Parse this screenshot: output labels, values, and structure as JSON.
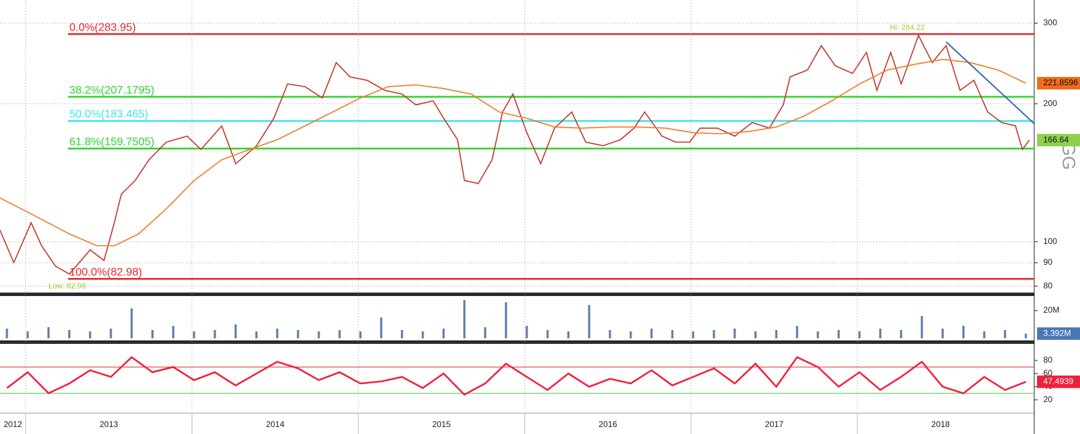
{
  "chart_data": [
    {
      "type": "line",
      "log_scale": true,
      "grid": true,
      "ticker": "GG",
      "xlim": [
        2012.846,
        2019.063
      ],
      "ylim": [
        78,
        337
      ],
      "yticks": [
        80,
        90,
        100,
        200,
        300
      ],
      "series": [
        {
          "color": "#c0392b",
          "tag_color": "#8fd14f",
          "x": [
            2012.846,
            2012.929,
            2013.033,
            2013.096,
            2013.179,
            2013.263,
            2013.388,
            2013.471,
            2013.533,
            2013.575,
            2013.658,
            2013.742,
            2013.846,
            2013.971,
            2014.054,
            2014.179,
            2014.263,
            2014.388,
            2014.492,
            2014.575,
            2014.679,
            2014.783,
            2014.867,
            2014.95,
            2015.054,
            2015.158,
            2015.263,
            2015.346,
            2015.45,
            2015.513,
            2015.596,
            2015.638,
            2015.721,
            2015.804,
            2015.867,
            2015.929,
            2016.013,
            2016.096,
            2016.179,
            2016.283,
            2016.367,
            2016.471,
            2016.575,
            2016.658,
            2016.721,
            2016.825,
            2016.908,
            2016.992,
            2017.054,
            2017.158,
            2017.263,
            2017.367,
            2017.471,
            2017.554,
            2017.596,
            2017.7,
            2017.783,
            2017.867,
            2017.971,
            2018.054,
            2018.117,
            2018.2,
            2018.263,
            2018.367,
            2018.45,
            2018.533,
            2018.617,
            2018.7,
            2018.783,
            2018.867,
            2018.95,
            2018.992,
            2019.033
          ],
          "values": [
            106,
            90,
            110,
            98,
            88.5,
            85,
            96,
            91,
            110,
            127,
            136,
            151,
            165,
            170,
            159,
            179,
            148,
            162,
            186,
            221,
            218,
            206,
            246,
            229,
            225,
            214,
            210,
            199,
            203,
            186,
            167,
            136,
            134,
            151,
            192,
            210,
            173,
            148,
            177,
            192,
            165,
            162,
            167,
            177,
            192,
            170,
            165,
            165,
            177,
            177,
            170,
            182,
            177,
            199,
            229,
            237,
            268,
            242,
            233,
            259,
            214,
            259,
            221,
            282,
            246,
            268,
            214,
            225,
            192,
            182,
            179,
            159,
            166.64
          ]
        },
        {
          "color": "#f07b28",
          "tag_color": "#f26b1d",
          "x": [
            2012.846,
            2013.013,
            2013.263,
            2013.429,
            2013.533,
            2013.679,
            2013.846,
            2014.013,
            2014.179,
            2014.346,
            2014.513,
            2014.679,
            2014.846,
            2015.013,
            2015.179,
            2015.346,
            2015.513,
            2015.679,
            2015.846,
            2016.013,
            2016.179,
            2016.346,
            2016.513,
            2016.679,
            2016.846,
            2017.013,
            2017.179,
            2017.346,
            2017.513,
            2017.679,
            2017.846,
            2018.013,
            2018.179,
            2018.346,
            2018.513,
            2018.679,
            2018.846,
            2019.013
          ],
          "values": [
            124.6,
            116,
            104,
            98,
            98,
            104,
            118,
            136,
            151,
            159,
            167,
            179,
            192,
            206,
            218,
            220,
            216,
            210,
            192,
            186,
            178,
            177,
            178,
            178,
            177,
            173,
            172,
            174,
            178,
            188,
            203,
            221,
            237,
            244,
            250,
            246,
            237,
            221.8596
          ]
        }
      ],
      "levels": [
        {
          "value": 283.95,
          "label": "0.0%(283.95)",
          "color": "#e8262a"
        },
        {
          "value": 207.1795,
          "label": "38.2%(207.1795)",
          "color": "#2ed52e"
        },
        {
          "value": 183.465,
          "label": "50.0%(183.465)",
          "color": "#3ee6e6"
        },
        {
          "value": 159.7505,
          "label": "61.8%(159.7505)",
          "color": "#2ed52e"
        },
        {
          "value": 82.98,
          "label": "100.0%(82.98)",
          "color": "#e8262a"
        }
      ],
      "trendline": {
        "x": [
          2018.533,
          2019.063
        ],
        "values": [
          273,
          181
        ],
        "color": "#3a6fb0"
      },
      "annotations": [
        {
          "text": "Hi: 284.22",
          "x": 2018.3,
          "value": 284.22,
          "position": "above",
          "color": "#9acd32"
        },
        {
          "text": "Low: 82.98",
          "x": 2013.25,
          "value": 82.98,
          "position": "below",
          "color": "#9acd32"
        }
      ]
    },
    {
      "type": "bar",
      "color": "#5b7aa5",
      "tag_color": "#4a78b5",
      "xlim": [
        2012.846,
        2019.063
      ],
      "ylim": [
        0,
        30
      ],
      "yticks": [
        {
          "value": 20,
          "label": "20M"
        }
      ],
      "x": [
        2012.8875,
        2013.0125,
        2013.1375,
        2013.2625,
        2013.3875,
        2013.5125,
        2013.6375,
        2013.7625,
        2013.8875,
        2014.0125,
        2014.1375,
        2014.2625,
        2014.3875,
        2014.5125,
        2014.6375,
        2014.7625,
        2014.8875,
        2015.0125,
        2015.1375,
        2015.2625,
        2015.3875,
        2015.5125,
        2015.6375,
        2015.7625,
        2015.8875,
        2016.0125,
        2016.1375,
        2016.2625,
        2016.3875,
        2016.5125,
        2016.6375,
        2016.7625,
        2016.8875,
        2017.0125,
        2017.1375,
        2017.2625,
        2017.3875,
        2017.5125,
        2017.6375,
        2017.7625,
        2017.8875,
        2018.0125,
        2018.1375,
        2018.2625,
        2018.3875,
        2018.5125,
        2018.6375,
        2018.7625,
        2018.8875,
        2019.0125
      ],
      "values": [
        7,
        5,
        8,
        6,
        5,
        7,
        21.5,
        6,
        9,
        5,
        6,
        10,
        5,
        7,
        6,
        5,
        6,
        5,
        15,
        6,
        5,
        7,
        27.5,
        8,
        26,
        9,
        6,
        5,
        24,
        6,
        5,
        7,
        6,
        5,
        6,
        7,
        5,
        6,
        9,
        5,
        6,
        5,
        7,
        6,
        16,
        7,
        9,
        5,
        6,
        3.392
      ],
      "value_labels": [
        null,
        null,
        null,
        null,
        null,
        null,
        null,
        null,
        null,
        null,
        null,
        null,
        null,
        null,
        null,
        null,
        null,
        null,
        null,
        null,
        null,
        null,
        null,
        null,
        null,
        null,
        null,
        null,
        null,
        null,
        null,
        null,
        null,
        null,
        null,
        null,
        null,
        null,
        null,
        null,
        null,
        null,
        null,
        null,
        null,
        null,
        null,
        null,
        null,
        "3.392M"
      ]
    },
    {
      "type": "line",
      "color": "#f0203a",
      "tag_color": "#f0203a",
      "xlim": [
        2012.846,
        2019.063
      ],
      "ylim": [
        6,
        101
      ],
      "yticks": [
        20,
        40,
        60,
        80
      ],
      "xticks": [
        2012,
        2013,
        2014,
        2015,
        2016,
        2017,
        2018
      ],
      "hlines": [
        {
          "value": 70,
          "color": "#e0303a"
        },
        {
          "value": 30,
          "color": "#3ccf3c"
        }
      ],
      "x": [
        2012.8875,
        2013.0125,
        2013.1375,
        2013.2625,
        2013.3875,
        2013.5125,
        2013.6375,
        2013.7625,
        2013.8875,
        2014.0125,
        2014.1375,
        2014.2625,
        2014.3875,
        2014.5125,
        2014.6375,
        2014.7625,
        2014.8875,
        2015.0125,
        2015.1375,
        2015.2625,
        2015.3875,
        2015.5125,
        2015.6375,
        2015.7625,
        2015.8875,
        2016.0125,
        2016.1375,
        2016.2625,
        2016.3875,
        2016.5125,
        2016.6375,
        2016.7625,
        2016.8875,
        2017.0125,
        2017.1375,
        2017.2625,
        2017.3875,
        2017.5125,
        2017.6375,
        2017.7625,
        2017.8875,
        2018.0125,
        2018.1375,
        2018.2625,
        2018.3875,
        2018.5125,
        2018.6375,
        2018.7625,
        2018.8875,
        2019.0125
      ],
      "values": [
        38,
        62,
        30,
        45,
        65,
        55,
        85,
        62,
        70,
        50,
        62,
        42,
        60,
        78,
        68,
        50,
        62,
        45,
        48,
        55,
        38,
        60,
        28,
        45,
        75,
        55,
        35,
        60,
        40,
        52,
        45,
        65,
        42,
        55,
        68,
        45,
        75,
        40,
        85,
        70,
        40,
        62,
        35,
        55,
        78,
        40,
        30,
        55,
        35,
        47.4939
      ]
    }
  ]
}
